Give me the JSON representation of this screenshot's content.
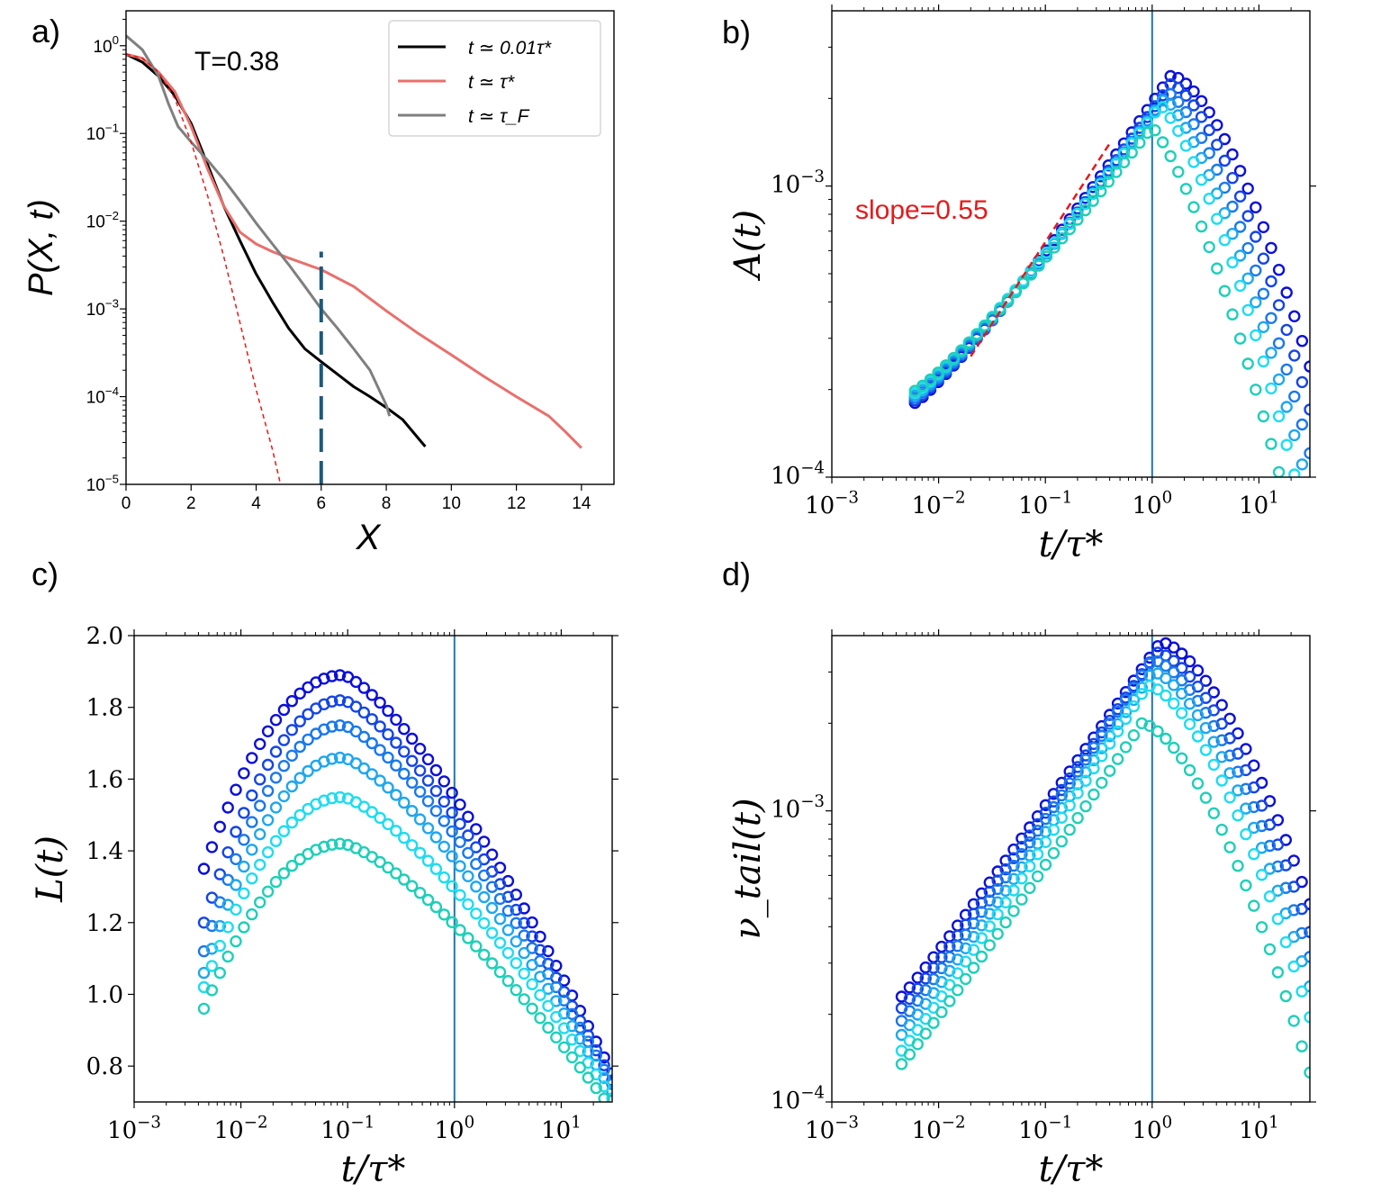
{
  "chart_data": [
    {
      "panel_label": "a)",
      "type": "line",
      "annotation": "T=0.38",
      "xlabel": "X",
      "ylabel": "P(X, t)",
      "xlim": [
        0,
        15
      ],
      "ylim": [
        1e-05,
        2.5
      ],
      "yscale": "log",
      "xticks": [
        0,
        2,
        4,
        6,
        8,
        10,
        12,
        14
      ],
      "xtick_labels": [
        "0",
        "2",
        "4",
        "6",
        "8",
        "10",
        "12",
        "14"
      ],
      "yticks": [
        1,
        0.1,
        0.01,
        0.001,
        0.0001,
        1e-05
      ],
      "ytick_labels": [
        {
          "base": "10",
          "exp": "0"
        },
        {
          "base": "10",
          "exp": "−1"
        },
        {
          "base": "10",
          "exp": "−2"
        },
        {
          "base": "10",
          "exp": "−3"
        },
        {
          "base": "10",
          "exp": "−4"
        },
        {
          "base": "10",
          "exp": "−5"
        }
      ],
      "legend_position": "top-right",
      "series": [
        {
          "name": "t ≃ 0.01τ*",
          "legend": true,
          "color": "#000000",
          "dashed": false,
          "x": [
            0,
            0.5,
            1,
            1.5,
            2,
            2.5,
            3,
            3.5,
            4,
            4.5,
            5,
            5.5,
            6,
            6.5,
            7,
            7.5,
            8,
            8.5,
            9,
            9.2
          ],
          "y": [
            0.8,
            0.65,
            0.45,
            0.27,
            0.13,
            0.045,
            0.015,
            0.006,
            0.0025,
            0.0012,
            0.0006,
            0.00035,
            0.00025,
            0.00018,
            0.00013,
            0.0001,
            7.5e-05,
            5.5e-05,
            3.3e-05,
            2.7e-05
          ]
        },
        {
          "name": "t ≃ τ*",
          "legend": true,
          "color": "#e8706c",
          "dashed": false,
          "x": [
            0,
            0.5,
            1,
            1.5,
            2,
            2.5,
            3,
            3.5,
            4,
            4.5,
            5,
            6,
            7,
            8,
            9,
            10,
            11,
            12,
            13,
            13.5,
            14
          ],
          "y": [
            0.8,
            0.72,
            0.5,
            0.3,
            0.12,
            0.04,
            0.015,
            0.0075,
            0.0055,
            0.0045,
            0.0038,
            0.0028,
            0.0018,
            0.00095,
            0.00052,
            0.0003,
            0.00017,
            0.0001,
            6e-05,
            4e-05,
            2.6e-05
          ]
        },
        {
          "name": "t ≃ τ_F",
          "legend": true,
          "color": "#7f7f7f",
          "dashed": false,
          "x": [
            0,
            0.5,
            1,
            1.3,
            1.6,
            2,
            2.5,
            3,
            3.5,
            4,
            4.5,
            5,
            5.5,
            6,
            6.5,
            7,
            7.5,
            8,
            8.1
          ],
          "y": [
            1.3,
            0.9,
            0.45,
            0.22,
            0.12,
            0.08,
            0.05,
            0.03,
            0.017,
            0.0095,
            0.0055,
            0.0032,
            0.0018,
            0.001,
            0.0006,
            0.00035,
            0.0002,
            8e-05,
            6e-05
          ]
        },
        {
          "name": "",
          "legend": false,
          "color": "#e31a1c",
          "dashed": true,
          "x": [
            0,
            0.5,
            1,
            1.5,
            2,
            2.5,
            3,
            3.5,
            4,
            4.5,
            4.75
          ],
          "y": [
            0.8,
            0.72,
            0.5,
            0.25,
            0.08,
            0.02,
            0.004,
            0.0007,
            0.00012,
            2.5e-05,
            1e-05
          ]
        }
      ],
      "vline": {
        "x": 6,
        "y_range": [
          1e-05,
          0.0045
        ],
        "color": "#1f5a7a",
        "dashed": true
      }
    },
    {
      "panel_label": "b)",
      "type": "scatter",
      "xlabel": "t/τ*",
      "ylabel": "A(t)",
      "xscale": "log",
      "yscale": "log",
      "xlim": [
        0.001,
        30
      ],
      "ylim": [
        0.0001,
        0.004
      ],
      "xticks": [
        0.001,
        0.01,
        0.1,
        1,
        10
      ],
      "xtick_labels": [
        {
          "base": "10",
          "exp": "−3"
        },
        {
          "base": "10",
          "exp": "−2"
        },
        {
          "base": "10",
          "exp": "−1"
        },
        {
          "base": "10",
          "exp": "0"
        },
        {
          "base": "10",
          "exp": "1"
        }
      ],
      "yticks": [
        0.0001,
        0.001
      ],
      "ytick_labels": [
        {
          "base": "10",
          "exp": "−4"
        },
        {
          "base": "10",
          "exp": "−3"
        }
      ],
      "vline_x": 1,
      "fit_annotation": "slope=0.55",
      "fit_line": {
        "x": [
          0.02,
          0.4
        ],
        "y": [
          0.00026,
          0.0014
        ],
        "color": "#e31a1c"
      },
      "marker_colors": [
        "#0b0fd8",
        "#1545e6",
        "#1a78ec",
        "#1fa7ee",
        "#1fdcf0",
        "#1fcfb8"
      ],
      "series_params": [
        {
          "peak": 0.0024,
          "xp": 1.5
        },
        {
          "peak": 0.00225,
          "xp": 1.5
        },
        {
          "peak": 0.0021,
          "xp": 1.4
        },
        {
          "peak": 0.002,
          "xp": 1.3
        },
        {
          "peak": 0.0019,
          "xp": 1.2
        },
        {
          "peak": 0.0016,
          "xp": 1.0
        }
      ],
      "x_start": 0.006,
      "y_start": 0.00018,
      "x_end": 30
    },
    {
      "panel_label": "c)",
      "type": "scatter",
      "xlabel": "t/τ*",
      "ylabel": "L(t)",
      "xscale": "log",
      "yscale": "linear",
      "xlim": [
        0.001,
        30
      ],
      "ylim": [
        0.7,
        2.0
      ],
      "xticks": [
        0.001,
        0.01,
        0.1,
        1,
        10
      ],
      "xtick_labels": [
        {
          "base": "10",
          "exp": "−3"
        },
        {
          "base": "10",
          "exp": "−2"
        },
        {
          "base": "10",
          "exp": "−1"
        },
        {
          "base": "10",
          "exp": "0"
        },
        {
          "base": "10",
          "exp": "1"
        }
      ],
      "yticks": [
        0.8,
        1.0,
        1.2,
        1.4,
        1.6,
        1.8,
        2.0
      ],
      "ytick_labels": [
        "0.8",
        "1.0",
        "1.2",
        "1.4",
        "1.6",
        "1.8",
        "2.0"
      ],
      "vline_x": 1,
      "marker_colors": [
        "#0b0fd8",
        "#1545e6",
        "#1a78ec",
        "#1fa7ee",
        "#1fdcf0",
        "#1fcfb8"
      ],
      "series_params": [
        {
          "start": 1.35,
          "peak": 1.89,
          "end": 0.78
        },
        {
          "start": 1.2,
          "peak": 1.82,
          "end": 0.76
        },
        {
          "start": 1.12,
          "peak": 1.75,
          "end": 0.75
        },
        {
          "start": 1.06,
          "peak": 1.66,
          "end": 0.73
        },
        {
          "start": 1.02,
          "peak": 1.55,
          "end": 0.71
        },
        {
          "start": 0.96,
          "peak": 1.42,
          "end": 0.68
        }
      ],
      "x_start": 0.0045,
      "x_peak": 0.09,
      "x_end": 30
    },
    {
      "panel_label": "d)",
      "type": "scatter",
      "xlabel": "t/τ*",
      "ylabel": "ν_tail(t)",
      "xscale": "log",
      "yscale": "log",
      "xlim": [
        0.001,
        30
      ],
      "ylim": [
        0.0001,
        0.004
      ],
      "xticks": [
        0.001,
        0.01,
        0.1,
        1,
        10
      ],
      "xtick_labels": [
        {
          "base": "10",
          "exp": "−3"
        },
        {
          "base": "10",
          "exp": "−2"
        },
        {
          "base": "10",
          "exp": "−1"
        },
        {
          "base": "10",
          "exp": "0"
        },
        {
          "base": "10",
          "exp": "1"
        }
      ],
      "yticks": [
        0.0001,
        0.001
      ],
      "ytick_labels": [
        {
          "base": "10",
          "exp": "−4"
        },
        {
          "base": "10",
          "exp": "−3"
        }
      ],
      "vline_x": 1,
      "marker_colors": [
        "#0b0fd8",
        "#1545e6",
        "#1a78ec",
        "#1fa7ee",
        "#1fdcf0",
        "#1fcfb8"
      ],
      "series_params": [
        {
          "start": 0.00023,
          "peak": 0.0038,
          "xp": 1.2
        },
        {
          "start": 0.00021,
          "peak": 0.0035,
          "xp": 1.1
        },
        {
          "start": 0.00019,
          "peak": 0.0033,
          "xp": 1.0
        },
        {
          "start": 0.00017,
          "peak": 0.003,
          "xp": 1.0
        },
        {
          "start": 0.00015,
          "peak": 0.0027,
          "xp": 0.9
        },
        {
          "start": 0.000135,
          "peak": 0.002,
          "xp": 0.8
        }
      ],
      "x_start": 0.0045,
      "x_end": 30
    }
  ]
}
